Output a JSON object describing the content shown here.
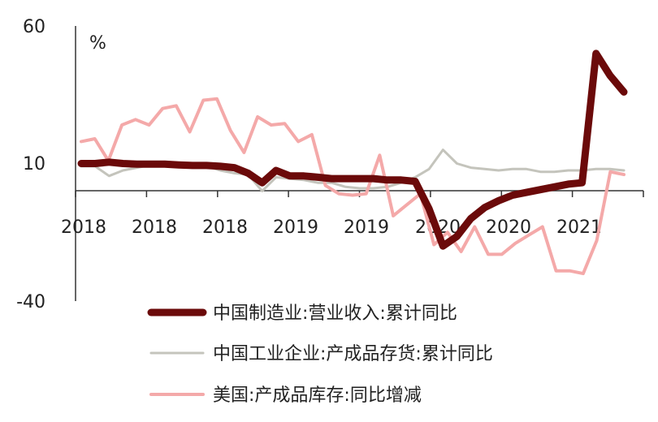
{
  "chart_data": {
    "type": "line",
    "ylabel": "%",
    "ylim": [
      -40,
      60
    ],
    "yticks": [
      60,
      10,
      -40
    ],
    "x_tick_labels": [
      "2018",
      "2018",
      "2018",
      "2019",
      "2019",
      "2020",
      "2020",
      "2021"
    ],
    "grid": false,
    "legend_position": "bottom",
    "series": [
      {
        "name": "中国制造业:营业收入:累计同比",
        "color": "#6b0a0a",
        "line_width": 9,
        "values": [
          10,
          10,
          10.5,
          10,
          9.8,
          9.8,
          9.8,
          9.5,
          9.3,
          9.3,
          9,
          8.5,
          6.5,
          3,
          7.5,
          5.5,
          5.5,
          5,
          4.5,
          4.5,
          4.5,
          4.5,
          4,
          4,
          3.5,
          -6.5,
          -20,
          -16.5,
          -10,
          -6,
          -3.5,
          -1.5,
          -0.5,
          0.5,
          1.5,
          2.5,
          3,
          50,
          42,
          36
        ]
      },
      {
        "name": "中国工业企业:产成品存货:累计同比",
        "color": "#c4c4bc",
        "line_width": 3,
        "values": [
          9,
          9,
          5.5,
          7.5,
          8.5,
          9.5,
          10,
          9.5,
          9.5,
          9,
          7.5,
          6.5,
          6,
          0,
          5,
          4.5,
          4,
          3,
          3,
          1.5,
          1,
          1,
          1.5,
          3,
          5,
          8,
          15,
          10,
          8.5,
          8,
          7.5,
          8,
          8,
          7,
          7,
          7.5,
          7.5,
          8,
          8,
          7.5
        ]
      },
      {
        "name": "美国:产成品库存:同比增减",
        "color": "#f4a9a9",
        "line_width": 4,
        "values": [
          18,
          19,
          11,
          24,
          26,
          24,
          30,
          31,
          21.5,
          33,
          33.5,
          22,
          14,
          27,
          24,
          24.5,
          18,
          20.5,
          2,
          -1,
          -1.5,
          -1,
          13,
          -9,
          -5,
          -1,
          -19.5,
          -15,
          -22,
          -13,
          -23,
          -23,
          -19,
          -16,
          -13,
          -29,
          -29,
          -30,
          -18,
          7,
          6
        ]
      }
    ]
  }
}
